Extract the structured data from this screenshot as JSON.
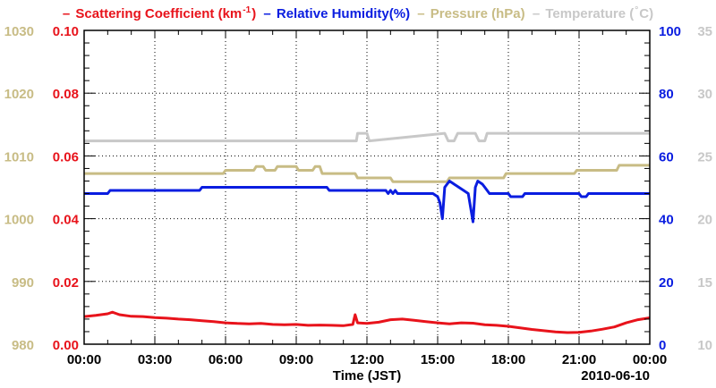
{
  "chart_data": {
    "type": "line",
    "legend": [
      {
        "key": "scat",
        "name": "Scattering Coefficient (km",
        "sup": "-1",
        "tail": ")",
        "color": "#e8131b"
      },
      {
        "key": "rh",
        "name": "Relative Humidity(%)",
        "color": "#0a1de0"
      },
      {
        "key": "pres",
        "name": "Pressure (hPa)",
        "color": "#c8bc85"
      },
      {
        "key": "temp",
        "name": "Temperature (",
        "deg": "°",
        "tail": "C)",
        "color": "#c8c8c8"
      }
    ],
    "xlabel": "Time (JST)",
    "date_label": "2010-06-10",
    "x_ticks": [
      "00:00",
      "03:00",
      "06:00",
      "09:00",
      "12:00",
      "15:00",
      "18:00",
      "21:00",
      "00:00"
    ],
    "xlim": [
      0,
      24
    ],
    "axes": {
      "scat": {
        "ticks": [
          "0.00",
          "0.02",
          "0.04",
          "0.06",
          "0.08",
          "0.10"
        ],
        "range": [
          0,
          0.1
        ],
        "color": "#e8131b"
      },
      "pres": {
        "ticks": [
          "980",
          "990",
          "1000",
          "1010",
          "1020",
          "1030"
        ],
        "range": [
          980,
          1030
        ],
        "color": "#c8bc85"
      },
      "rh": {
        "ticks": [
          "0",
          "20",
          "40",
          "60",
          "80",
          "100"
        ],
        "range": [
          0,
          100
        ],
        "color": "#0a1de0"
      },
      "temp": {
        "ticks": [
          "10",
          "15",
          "20",
          "25",
          "30",
          "35"
        ],
        "range": [
          10,
          35
        ],
        "color": "#c8c8c8"
      }
    },
    "grid": true,
    "series": [
      {
        "name": "Temperature",
        "axis": "temp",
        "color": "#c8c8c8",
        "x": [
          0,
          11.55,
          11.6,
          12.0,
          12.1,
          15.3,
          15.45,
          15.7,
          15.85,
          16.6,
          16.75,
          17.0,
          17.1,
          24
        ],
        "y": [
          26.2,
          26.2,
          26.8,
          26.8,
          26.2,
          26.8,
          26.2,
          26.2,
          26.8,
          26.8,
          26.2,
          26.2,
          26.8,
          26.8
        ]
      },
      {
        "name": "Pressure (hPa)",
        "axis": "pres",
        "color": "#c8bc85",
        "x": [
          0,
          5.9,
          6.0,
          7.2,
          7.3,
          7.6,
          7.7,
          8.1,
          8.2,
          9.0,
          9.1,
          9.7,
          9.8,
          10.0,
          10.1,
          11.5,
          11.6,
          13.0,
          13.1,
          15.4,
          15.5,
          16.5,
          16.6,
          17.8,
          17.9,
          20.8,
          20.9,
          21.0,
          21.1,
          22.6,
          22.7,
          24
        ],
        "y": [
          1007.2,
          1007.2,
          1007.7,
          1007.7,
          1008.3,
          1008.3,
          1007.7,
          1007.7,
          1008.3,
          1008.3,
          1007.7,
          1007.7,
          1008.3,
          1008.3,
          1007.2,
          1007.2,
          1006.5,
          1006.5,
          1005.9,
          1005.9,
          1006.5,
          1006.5,
          1006.5,
          1006.5,
          1007.2,
          1007.2,
          1007.7,
          1007.7,
          1007.7,
          1007.7,
          1008.5,
          1008.5
        ]
      },
      {
        "name": "Relative Humidity(%)",
        "axis": "rh",
        "color": "#0a1de0",
        "x": [
          0,
          1.0,
          1.1,
          4.9,
          5.0,
          10.3,
          10.4,
          12.8,
          12.9,
          13.0,
          13.1,
          13.2,
          13.3,
          14.8,
          15.0,
          15.1,
          15.2,
          15.3,
          15.5,
          15.9,
          16.1,
          16.3,
          16.5,
          16.6,
          16.7,
          16.9,
          17.0,
          17.2,
          18.0,
          18.1,
          18.6,
          18.7,
          20.1,
          20.2,
          21.0,
          21.1,
          21.3,
          21.4,
          24
        ],
        "y": [
          48,
          48,
          49,
          49,
          50,
          50,
          49,
          49,
          48,
          49,
          48,
          49,
          48,
          48,
          47,
          45,
          40,
          50,
          52,
          50,
          49,
          48,
          39,
          50,
          52,
          51,
          50,
          48,
          48,
          47,
          47,
          48,
          48,
          48,
          48,
          47,
          47,
          48,
          48
        ]
      },
      {
        "name": "Scattering Coefficient",
        "axis": "scat",
        "color": "#e8131b",
        "x": [
          0,
          0.5,
          1.0,
          1.2,
          1.5,
          2.0,
          2.5,
          3.0,
          3.5,
          4.0,
          4.5,
          5.0,
          5.5,
          6.0,
          6.5,
          7.0,
          7.5,
          8.0,
          8.5,
          9.0,
          9.5,
          10.0,
          10.5,
          11.0,
          11.4,
          11.5,
          11.6,
          12.0,
          12.5,
          13.0,
          13.5,
          14.0,
          14.5,
          15.0,
          15.5,
          16.0,
          16.5,
          17.0,
          17.5,
          18.0,
          18.5,
          19.0,
          19.5,
          20.0,
          20.5,
          21.0,
          21.5,
          22.0,
          22.5,
          23.0,
          23.5,
          24
        ],
        "y": [
          0.0088,
          0.0092,
          0.0097,
          0.0102,
          0.0094,
          0.0089,
          0.0088,
          0.0085,
          0.0083,
          0.008,
          0.0078,
          0.0075,
          0.0072,
          0.0068,
          0.0066,
          0.0065,
          0.0066,
          0.0063,
          0.0062,
          0.0063,
          0.006,
          0.0061,
          0.006,
          0.0059,
          0.0063,
          0.0094,
          0.0068,
          0.0066,
          0.007,
          0.0078,
          0.008,
          0.0076,
          0.0072,
          0.0068,
          0.0065,
          0.0068,
          0.0067,
          0.0062,
          0.006,
          0.0057,
          0.0052,
          0.0047,
          0.0043,
          0.0039,
          0.0037,
          0.0038,
          0.0042,
          0.0048,
          0.0055,
          0.0068,
          0.0078,
          0.0084
        ]
      }
    ]
  }
}
